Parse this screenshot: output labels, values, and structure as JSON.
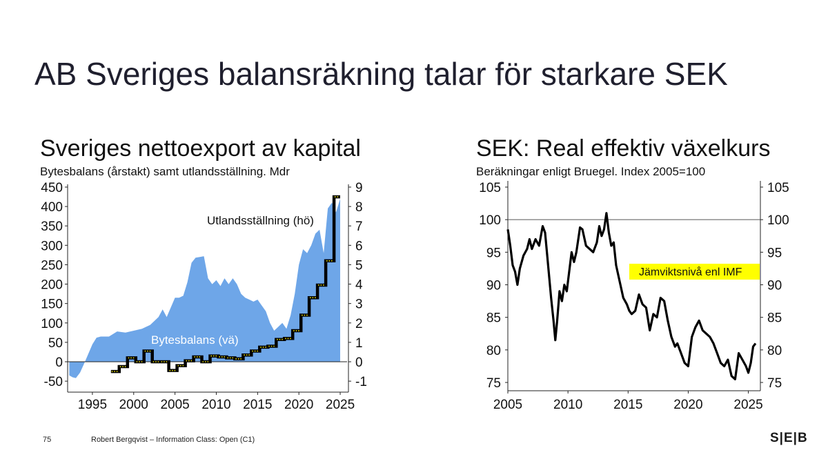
{
  "slide": {
    "title": "AB Sveriges balansräkning talar för starkare SEK",
    "page_number": "75",
    "footer": "Robert Bergqvist – Information Class: Open (C1)",
    "logo": "S|E|B"
  },
  "colors": {
    "area": "#6ea6e8",
    "line": "#000000",
    "marker": "#f2e600",
    "highlight": "#ffff00"
  },
  "chart_data": [
    {
      "type": "area",
      "title": "Sveriges nettoexport av kapital",
      "subtitle": "Bytesbalans (årstakt) samt utlandsställning. Mdr",
      "x_ticks": [
        "1995",
        "2000",
        "2005",
        "2010",
        "2015",
        "2020",
        "2025"
      ],
      "y_left_ticks": [
        "450",
        "400",
        "350",
        "300",
        "250",
        "200",
        "150",
        "100",
        "50",
        "0",
        "-50"
      ],
      "y_right_ticks": [
        "9",
        "8",
        "7",
        "6",
        "5",
        "4",
        "3",
        "2",
        "1",
        "0",
        "-1"
      ],
      "ylim_left": [
        -70,
        460
      ],
      "ylim_right": [
        -1.4,
        9.2
      ],
      "xlim": [
        1992,
        2026
      ],
      "annotations": [
        "Utlandsställning (hö)",
        "Bytesbalans (vä)"
      ],
      "series": [
        {
          "name": "Bytesbalans (vä)",
          "axis": "left",
          "x": [
            1992.2,
            1992.6,
            1993.0,
            1993.5,
            1994.0,
            1994.5,
            1995.0,
            1995.5,
            1996.0,
            1997.0,
            1998.0,
            1999.0,
            2000.0,
            2001.0,
            2002.0,
            2003.0,
            2003.5,
            2004.0,
            2004.5,
            2005.0,
            2005.5,
            2006.0,
            2006.5,
            2007.0,
            2007.5,
            2008.0,
            2008.5,
            2009.0,
            2009.5,
            2010.0,
            2010.5,
            2011.0,
            2011.5,
            2012.0,
            2012.5,
            2013.0,
            2013.5,
            2014.0,
            2014.5,
            2015.0,
            2015.5,
            2016.0,
            2016.5,
            2017.0,
            2017.5,
            2018.0,
            2018.5,
            2019.0,
            2019.5,
            2020.0,
            2020.5,
            2021.0,
            2021.5,
            2022.0,
            2022.5,
            2023.0,
            2023.5,
            2024.0,
            2024.5,
            2025.0
          ],
          "values": [
            -35,
            -40,
            -42,
            -28,
            -5,
            20,
            45,
            62,
            65,
            65,
            78,
            75,
            80,
            85,
            95,
            115,
            135,
            115,
            140,
            165,
            165,
            170,
            205,
            255,
            268,
            270,
            272,
            215,
            200,
            210,
            195,
            215,
            200,
            215,
            200,
            175,
            165,
            160,
            155,
            160,
            145,
            130,
            100,
            80,
            90,
            100,
            85,
            120,
            175,
            250,
            290,
            280,
            300,
            330,
            340,
            280,
            395,
            410,
            385,
            420
          ]
        },
        {
          "name": "Utlandsställning (hö)",
          "axis": "right",
          "x": [
            1997.25,
            1998.25,
            1999.25,
            2000.25,
            2001.25,
            2002.25,
            2003.25,
            2004.25,
            2005.25,
            2006.25,
            2007.25,
            2008.25,
            2009.25,
            2010.25,
            2011.25,
            2012.25,
            2013.25,
            2014.25,
            2015.25,
            2016.25,
            2017.25,
            2018.25,
            2019.25,
            2020.25,
            2021.25,
            2022.25,
            2023.25,
            2024.25
          ],
          "values": [
            -0.5,
            -0.25,
            0.2,
            0.0,
            0.55,
            0.0,
            0.0,
            -0.45,
            -0.2,
            0.05,
            0.25,
            0.0,
            0.3,
            0.25,
            0.2,
            0.15,
            0.35,
            0.55,
            0.75,
            0.8,
            1.15,
            1.2,
            1.6,
            2.4,
            3.3,
            3.95,
            5.2,
            8.5
          ]
        }
      ]
    },
    {
      "type": "line",
      "title": "SEK: Real effektiv växelkurs",
      "subtitle": "Beräkningar enligt Bruegel. Index 2005=100",
      "x_ticks": [
        "2005",
        "2010",
        "2015",
        "2020",
        "2025"
      ],
      "y_ticks": [
        "105",
        "100",
        "95",
        "90",
        "85",
        "80",
        "75"
      ],
      "ylim": [
        74,
        106
      ],
      "xlim": [
        2005,
        2026
      ],
      "reference_line": 100,
      "annotation": "Jämviktsnivå enl IMF",
      "series": [
        {
          "name": "SEK real effektiv växelkurs",
          "x": [
            2005.0,
            2005.2,
            2005.4,
            2005.6,
            2005.8,
            2006.0,
            2006.3,
            2006.6,
            2006.8,
            2007.0,
            2007.3,
            2007.6,
            2007.9,
            2008.1,
            2008.3,
            2008.6,
            2008.8,
            2008.95,
            2009.1,
            2009.3,
            2009.5,
            2009.7,
            2009.9,
            2010.1,
            2010.3,
            2010.5,
            2010.7,
            2011.0,
            2011.2,
            2011.5,
            2011.8,
            2012.1,
            2012.4,
            2012.6,
            2012.8,
            2013.0,
            2013.2,
            2013.4,
            2013.6,
            2013.8,
            2014.0,
            2014.3,
            2014.6,
            2014.9,
            2015.1,
            2015.3,
            2015.6,
            2015.9,
            2016.2,
            2016.5,
            2016.8,
            2017.1,
            2017.4,
            2017.7,
            2018.0,
            2018.3,
            2018.6,
            2018.9,
            2019.1,
            2019.4,
            2019.7,
            2020.0,
            2020.3,
            2020.6,
            2020.9,
            2021.2,
            2021.5,
            2021.8,
            2022.1,
            2022.4,
            2022.7,
            2023.0,
            2023.3,
            2023.6,
            2023.9,
            2024.2,
            2024.5,
            2024.8,
            2025.0,
            2025.2,
            2025.4,
            2025.6
          ],
          "values": [
            98.5,
            96.0,
            93.0,
            92.0,
            90.0,
            92.5,
            94.5,
            95.5,
            97.0,
            95.5,
            97.0,
            96.0,
            99.0,
            98.0,
            94.0,
            88.0,
            84.5,
            81.5,
            84.5,
            89.0,
            87.5,
            90.0,
            89.0,
            92.0,
            95.0,
            93.5,
            95.0,
            98.8,
            98.5,
            96.0,
            95.5,
            95.0,
            96.5,
            99.0,
            97.5,
            98.5,
            101.0,
            98.0,
            96.0,
            96.5,
            93.0,
            90.5,
            88.0,
            87.0,
            86.0,
            85.5,
            86.0,
            88.5,
            87.0,
            86.5,
            83.0,
            85.5,
            85.0,
            88.0,
            87.5,
            84.5,
            82.0,
            80.5,
            81.0,
            79.5,
            78.0,
            77.5,
            82.0,
            83.5,
            84.5,
            83.0,
            82.5,
            82.0,
            81.0,
            79.5,
            78.0,
            77.5,
            78.5,
            76.0,
            75.5,
            79.5,
            78.5,
            77.5,
            76.5,
            78.0,
            80.5,
            81.0
          ]
        }
      ]
    }
  ]
}
